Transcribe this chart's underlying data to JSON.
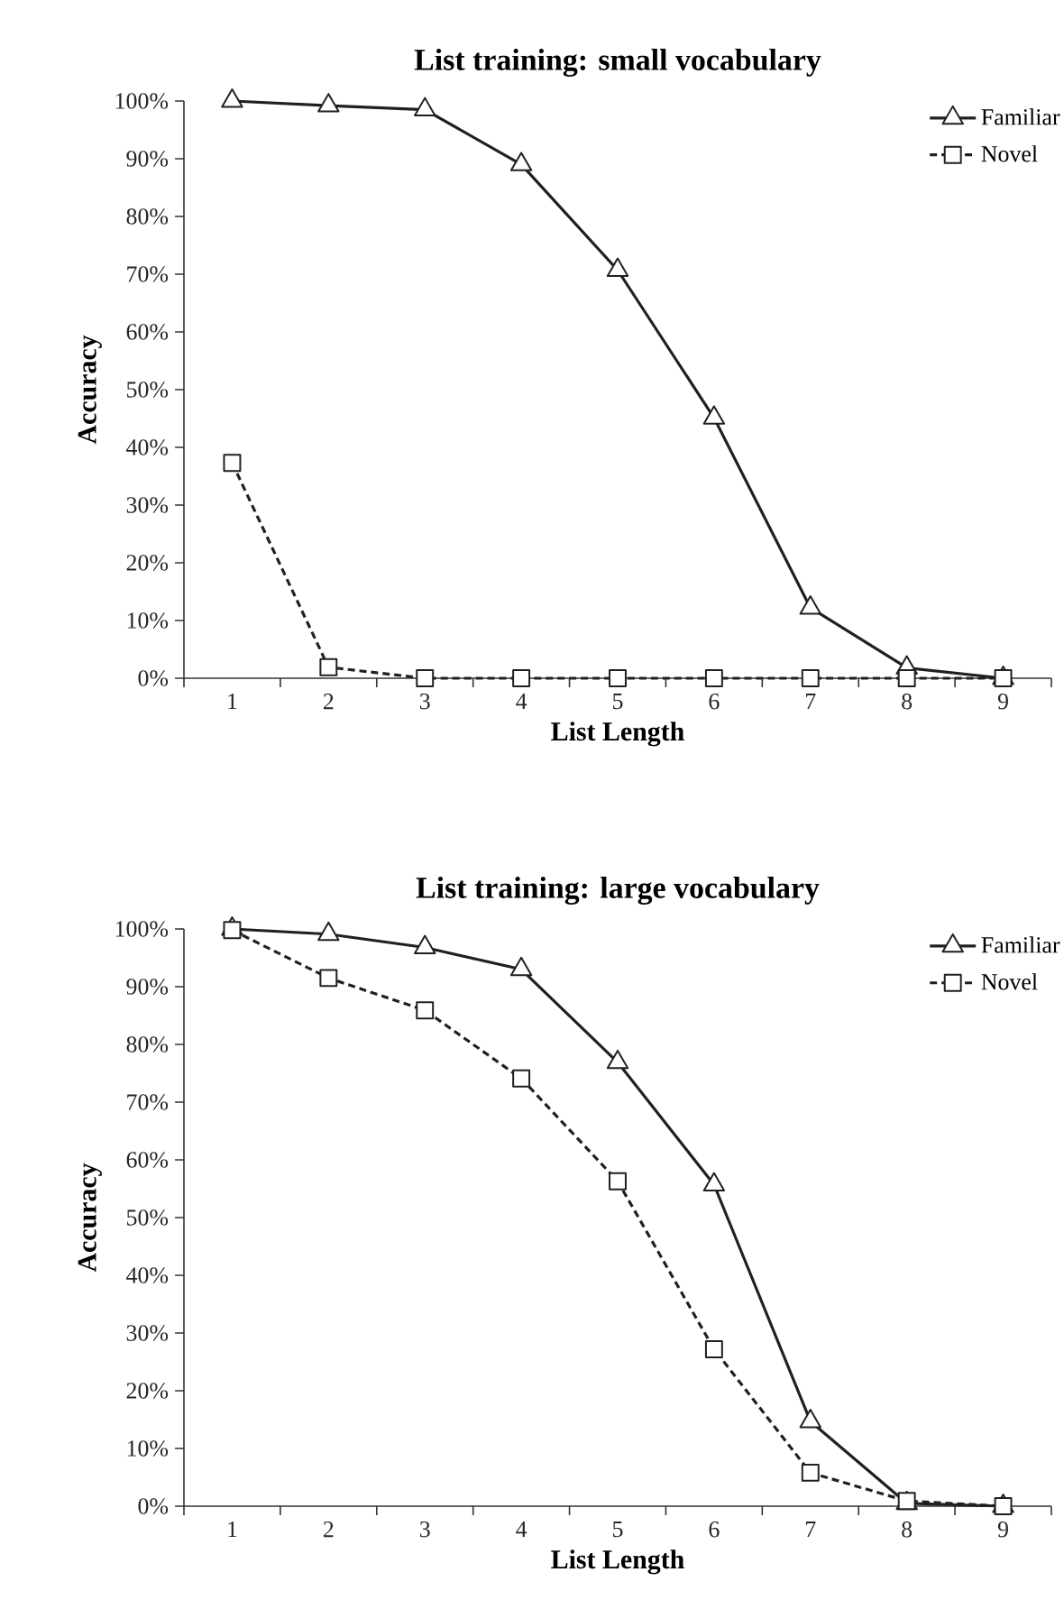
{
  "chart_data": [
    {
      "type": "line",
      "title": "List training: small vocabulary",
      "xlabel": "List Length",
      "ylabel": "Accuracy",
      "categories": [
        "1",
        "2",
        "3",
        "4",
        "5",
        "6",
        "7",
        "8",
        "9"
      ],
      "ylim": [
        0,
        100
      ],
      "yticks": [
        {
          "value": 0,
          "label": "0%"
        },
        {
          "value": 10,
          "label": "10%"
        },
        {
          "value": 20,
          "label": "20%"
        },
        {
          "value": 30,
          "label": "30%"
        },
        {
          "value": 40,
          "label": "40%"
        },
        {
          "value": 50,
          "label": "50%"
        },
        {
          "value": 60,
          "label": "60%"
        },
        {
          "value": 70,
          "label": "70%"
        },
        {
          "value": 80,
          "label": "80%"
        },
        {
          "value": 90,
          "label": "90%"
        },
        {
          "value": 100,
          "label": "100%"
        }
      ],
      "legend": "top right",
      "series": [
        {
          "name": "Familiar",
          "color": "#231f20",
          "marker": "triangle",
          "line_style": "solid",
          "values": [
            100,
            99.2,
            98.5,
            89,
            70.7,
            45.1,
            12.2,
            1.8,
            0
          ]
        },
        {
          "name": "Novel",
          "color": "#231f20",
          "marker": "square",
          "line_style": "dashed",
          "values": [
            37.3,
            1.9,
            0,
            0,
            0,
            0,
            0,
            0,
            0
          ]
        }
      ]
    },
    {
      "type": "line",
      "title": "List training: large vocabulary",
      "xlabel": "List Length",
      "ylabel": "Accuracy",
      "categories": [
        "1",
        "2",
        "3",
        "4",
        "5",
        "6",
        "7",
        "8",
        "9"
      ],
      "ylim": [
        0,
        100
      ],
      "yticks": [
        {
          "value": 0,
          "label": "0%"
        },
        {
          "value": 10,
          "label": "10%"
        },
        {
          "value": 20,
          "label": "20%"
        },
        {
          "value": 30,
          "label": "30%"
        },
        {
          "value": 40,
          "label": "40%"
        },
        {
          "value": 50,
          "label": "50%"
        },
        {
          "value": 60,
          "label": "60%"
        },
        {
          "value": 70,
          "label": "70%"
        },
        {
          "value": 80,
          "label": "80%"
        },
        {
          "value": 90,
          "label": "90%"
        },
        {
          "value": 100,
          "label": "100%"
        }
      ],
      "legend": "top right",
      "series": [
        {
          "name": "Familiar",
          "color": "#231f20",
          "marker": "triangle",
          "line_style": "solid",
          "values": [
            100,
            99.1,
            96.8,
            93,
            76.9,
            55.7,
            14.7,
            0.5,
            0
          ]
        },
        {
          "name": "Novel",
          "color": "#231f20",
          "marker": "square",
          "line_style": "dashed",
          "values": [
            99.8,
            91.5,
            85.9,
            74.1,
            56.3,
            27.2,
            5.8,
            0.9,
            0
          ]
        }
      ]
    }
  ]
}
